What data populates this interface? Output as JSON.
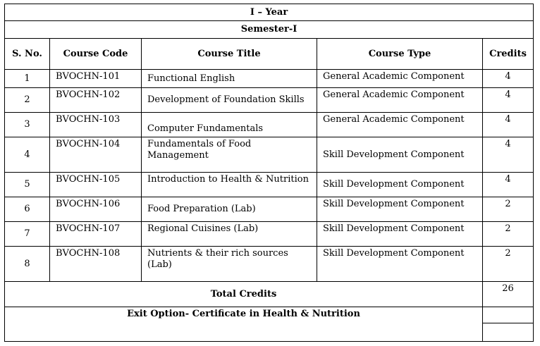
{
  "heading": {
    "year": "I – Year",
    "semester": "Semester-I"
  },
  "columns": [
    "S. No.",
    "Course Code",
    "Course Title",
    "Course Type",
    "Credits"
  ],
  "rows": [
    {
      "sno": "1",
      "code": "BVOCHN-101",
      "title": "Functional English",
      "type": "General Academic Component",
      "credits": "4"
    },
    {
      "sno": "2",
      "code": "BVOCHN-102",
      "title": "Development of Foundation Skills",
      "type": "General Academic Component",
      "credits": "4"
    },
    {
      "sno": "3",
      "code": "BVOCHN-103",
      "title": "Computer Fundamentals",
      "type": "General Academic Component",
      "credits": "4"
    },
    {
      "sno": "4",
      "code": "BVOCHN-104",
      "title": "Fundamentals of Food Management",
      "type": "Skill Development Component",
      "credits": "4"
    },
    {
      "sno": "5",
      "code": "BVOCHN-105",
      "title": "Introduction to Health & Nutrition",
      "type": "Skill Development Component",
      "credits": "4"
    },
    {
      "sno": "6",
      "code": "BVOCHN-106",
      "title": "Food Preparation (Lab)",
      "type": "Skill Development Component",
      "credits": "2"
    },
    {
      "sno": "7",
      "code": "BVOCHN-107",
      "title": "Regional Cuisines (Lab)",
      "type": "Skill Development Component",
      "credits": "2"
    },
    {
      "sno": "8",
      "code": "BVOCHN-108",
      "title": "Nutrients & their rich sources (Lab)",
      "type": "Skill Development Component",
      "credits": "2"
    }
  ],
  "total": {
    "label": "Total Credits",
    "value": "26"
  },
  "exit_option": "Exit Option-  Certificate  in Health  & Nutrition"
}
